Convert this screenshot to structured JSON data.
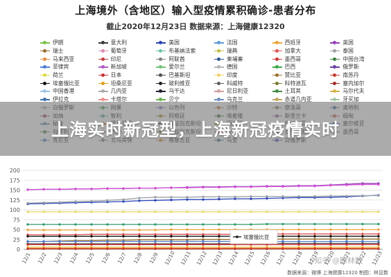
{
  "header": {
    "title": "上海境外（含地区）输入型疫情累积确诊-患者分布",
    "subtitle": "截止2020年12月23日 数据来源：上海健康12320"
  },
  "banner": {
    "text": "上海实时新冠型，上海新冠疫情实时"
  },
  "footer": {
    "source": "数据来源：微博 上海健康12320 制图：林显数",
    "watermark": "i 知乎 @陈林数"
  },
  "legend": [
    {
      "label": "伊朗",
      "color": "#79c142"
    },
    {
      "label": "意大利",
      "color": "#3b3b3b"
    },
    {
      "label": "美国",
      "color": "#2a45b8"
    },
    {
      "label": "法国",
      "color": "#5a9ad6"
    },
    {
      "label": "西班牙",
      "color": "#f0a33b"
    },
    {
      "label": "英国",
      "color": "#8e3fb5"
    },
    {
      "label": "瑞士",
      "color": "#9b6b2a"
    },
    {
      "label": "葡萄牙",
      "color": "#d98cb8"
    },
    {
      "label": "布基纳法索",
      "color": "#6cc0a8"
    },
    {
      "label": "瑞典",
      "color": "#c0c040"
    },
    {
      "label": "加拿大",
      "color": "#e05252"
    },
    {
      "label": "泰国",
      "color": "#9aa0a6"
    },
    {
      "label": "马来西亚",
      "color": "#e58a3c"
    },
    {
      "label": "印尼",
      "color": "#c23b3b"
    },
    {
      "label": "阿联酋",
      "color": "#7f7f7f"
    },
    {
      "label": "柬埔寨",
      "color": "#2f5597"
    },
    {
      "label": "墨西哥",
      "color": "#cc3333"
    },
    {
      "label": "中国台湾",
      "color": "#3a7d3a"
    },
    {
      "label": "菲律宾",
      "color": "#4f7fd1"
    },
    {
      "label": "新加坡",
      "color": "#b05cc0"
    },
    {
      "label": "爱尔兰",
      "color": "#74c476"
    },
    {
      "label": "德国",
      "color": "#b5b5b5"
    },
    {
      "label": "巴西",
      "color": "#3aa84a"
    },
    {
      "label": "俄罗斯",
      "color": "#6b3fa0"
    },
    {
      "label": "荷兰",
      "color": "#dddd44"
    },
    {
      "label": "日本",
      "color": "#c93030"
    },
    {
      "label": "巴基斯坦",
      "color": "#4d4d4d"
    },
    {
      "label": "印度",
      "color": "#f2d36b"
    },
    {
      "label": "赞比亚",
      "color": "#9b6f2f"
    },
    {
      "label": "南苏丹",
      "color": "#c53a2f"
    },
    {
      "label": "埃塞俄比亚",
      "color": "#111111"
    },
    {
      "label": "坦桑尼亚",
      "color": "#e0a020"
    },
    {
      "label": "玻利维亚",
      "color": "#222222"
    },
    {
      "label": "科威特",
      "color": "#5c5c5c"
    },
    {
      "label": "科特迪瓦",
      "color": "#7a7a30"
    },
    {
      "label": "塞内加尔",
      "color": "#a32a2a"
    },
    {
      "label": "中国香港",
      "color": "#9dc3e6"
    },
    {
      "label": "几内亚",
      "color": "#aaaaaa"
    },
    {
      "label": "乌干达",
      "color": "#222233"
    },
    {
      "label": "尼日利亚",
      "color": "#d0a0a0"
    },
    {
      "label": "土耳其",
      "color": "#3d8c3d"
    },
    {
      "label": "马尔代夫",
      "color": "#d4b24a"
    },
    {
      "label": "伊拉克",
      "color": "#3d6fb0"
    },
    {
      "label": "卡塔尔",
      "color": "#f28e8e"
    },
    {
      "label": "贝宁",
      "color": "#6ab04c"
    },
    {
      "label": "乌克兰",
      "color": "#6c8ebf"
    },
    {
      "label": "赤道几内亚",
      "color": "#c4a35a"
    },
    {
      "label": "牙买加",
      "color": "#a0c4a0"
    },
    {
      "label": "白俄罗斯",
      "color": "#b3b3b3"
    },
    {
      "label": "刚果",
      "color": "#55aa55"
    },
    {
      "label": "以色列",
      "color": "#8888cc"
    },
    {
      "label": "沙特",
      "color": "#cc8855"
    },
    {
      "label": "摩洛哥",
      "color": "#998877"
    },
    {
      "label": "奥地利",
      "color": "#5577aa"
    },
    {
      "label": "加纳",
      "color": "#aa5566"
    },
    {
      "label": "智利",
      "color": "#66aaaa"
    },
    {
      "label": "阿根廷",
      "color": "#aa9933"
    },
    {
      "label": "喀麦隆",
      "color": "#557755"
    },
    {
      "label": "斯里兰卡",
      "color": "#996699"
    },
    {
      "label": "缅甸",
      "color": "#cc6666"
    },
    {
      "label": "秘鲁",
      "color": "#7799bb"
    },
    {
      "label": "罗马尼亚",
      "color": "#bb7733"
    },
    {
      "label": "乌兹别克斯坦",
      "color": "#667788"
    },
    {
      "label": "阿根廷",
      "color": "#88aa44"
    },
    {
      "label": "保加利亚",
      "color": "#2c2c5a"
    },
    {
      "label": "塞尔维亚",
      "color": "#4466bb"
    },
    {
      "label": "匈牙利",
      "color": "#5a8f5a"
    },
    {
      "label": "也门",
      "color": "#b06a9a"
    },
    {
      "label": "乌兹别克斯坦",
      "color": "#8a8a5a"
    },
    {
      "label": "安哥拉",
      "color": "#aa4444"
    },
    {
      "label": "瓦努阿图",
      "color": "#3a3a3a"
    },
    {
      "label": "墨西哥",
      "color": "#7a5a3a"
    },
    {
      "label": "肯尼亚",
      "color": "#5b8bd0"
    },
    {
      "label": "北马其顿",
      "color": "#8c8c8c"
    },
    {
      "label": "格鲁吉亚",
      "color": "#d89a3a"
    },
    {
      "label": "马里",
      "color": "#4a7a9a"
    },
    {
      "label": "白俄罗斯",
      "color": "#5a5acc"
    }
  ],
  "chart_data": {
    "type": "line",
    "title": "上海境外（含地区）输入型疫情累积确诊-患者分布",
    "subtitle": "截止2020年12月23日 数据来源：上海健康12320",
    "xlabel": "",
    "ylabel": "",
    "x": [
      "12/1",
      "12/2",
      "12/3",
      "12/4",
      "12/5",
      "12/6",
      "12/7",
      "12/8",
      "12/9",
      "12/10",
      "12/11",
      "12/12",
      "12/13",
      "12/14",
      "12/15",
      "12/16",
      "12/17",
      "12/18",
      "12/19",
      "12/20",
      "12/21",
      "12/22",
      "12/23"
    ],
    "ylim": [
      0,
      200
    ],
    "yticks": [
      0,
      25,
      50,
      75,
      100,
      125,
      150,
      175,
      200
    ],
    "grid": true,
    "series": [
      {
        "name": "英国",
        "color": "#8e3fb5",
        "values": [
          151,
          152,
          152,
          153,
          153,
          154,
          154,
          155,
          155,
          156,
          157,
          158,
          158,
          159,
          159,
          160,
          160,
          161,
          161,
          163,
          165,
          167,
          167
        ]
      },
      {
        "name": "俄罗斯",
        "color": "#d24fd6",
        "values": [
          151,
          152,
          152,
          153,
          153,
          154,
          154,
          155,
          155,
          156,
          156,
          157,
          157,
          158,
          158,
          159,
          159,
          160,
          160,
          162,
          163,
          164,
          164
        ]
      },
      {
        "name": "美国",
        "color": "#2a45b8",
        "values": [
          115,
          116,
          117,
          118,
          119,
          120,
          121,
          123,
          124,
          125,
          126,
          126,
          127,
          128,
          128,
          129,
          130,
          131,
          131,
          132,
          133,
          135,
          137
        ]
      },
      {
        "name": "法国",
        "color": "#9aa0a6",
        "values": [
          117,
          118,
          119,
          121,
          122,
          124,
          126,
          130,
          132,
          132,
          132,
          133,
          133,
          133,
          134,
          134,
          134,
          134,
          134,
          135,
          135,
          136,
          136
        ]
      },
      {
        "name": "伊朗",
        "color": "#e8d96b",
        "values": [
          95,
          95,
          95,
          95,
          95,
          95,
          95,
          95,
          95,
          95,
          95,
          95,
          95,
          95,
          95,
          95,
          95,
          95,
          95,
          95,
          95,
          95,
          95
        ]
      },
      {
        "name": "意大利",
        "color": "#2f9a6c",
        "values": [
          63,
          63,
          63,
          63,
          63,
          63,
          63,
          63,
          63,
          63,
          63,
          63,
          63,
          63,
          63,
          64,
          64,
          64,
          64,
          64,
          64,
          64,
          64
        ]
      },
      {
        "name": "西班牙",
        "color": "#f0a33b",
        "values": [
          49,
          49,
          49,
          49,
          49,
          49,
          49,
          49,
          49,
          50,
          50,
          50,
          50,
          50,
          50,
          50,
          50,
          50,
          50,
          50,
          50,
          50,
          50
        ]
      },
      {
        "name": "加拿大",
        "color": "#e05252",
        "values": [
          37,
          37,
          37,
          37,
          38,
          38,
          38,
          38,
          38,
          38,
          38,
          38,
          38,
          38,
          38,
          38,
          39,
          39,
          39,
          39,
          39,
          39,
          39
        ]
      },
      {
        "name": "埃塞俄比亚",
        "color": "#111111",
        "values": [
          33,
          33,
          33,
          33,
          33,
          33,
          33,
          33,
          33,
          33,
          33,
          33,
          33,
          33,
          33,
          33,
          33,
          33,
          33,
          33,
          33,
          33,
          33
        ]
      },
      {
        "name": "赞比亚",
        "color": "#9b6f2f",
        "values": [
          20,
          20,
          21,
          22,
          22,
          23,
          23,
          24,
          24,
          24,
          24,
          25,
          25,
          25,
          25,
          25,
          26,
          26,
          26,
          26,
          26,
          26,
          26
        ]
      },
      {
        "name": "菲律宾",
        "color": "#4f7fd1",
        "values": [
          20,
          20,
          20,
          20,
          20,
          20,
          20,
          20,
          20,
          20,
          20,
          20,
          20,
          20,
          20,
          20,
          20,
          20,
          20,
          20,
          20,
          20,
          20
        ]
      },
      {
        "name": "巴基斯坦",
        "color": "#4d4d4d",
        "values": [
          14,
          14,
          14,
          14,
          14,
          14,
          14,
          14,
          14,
          14,
          14,
          14,
          14,
          14,
          15,
          15,
          15,
          15,
          15,
          15,
          15,
          15,
          15
        ]
      },
      {
        "name": "日本",
        "color": "#c93030",
        "values": [
          12,
          12,
          12,
          12,
          12,
          12,
          12,
          12,
          12,
          12,
          12,
          12,
          12,
          12,
          12,
          12,
          12,
          12,
          12,
          12,
          12,
          12,
          12
        ]
      },
      {
        "name": "印度",
        "color": "#f2d36b",
        "values": [
          6,
          6,
          6,
          6,
          6,
          6,
          6,
          6,
          6,
          6,
          6,
          6,
          6,
          6,
          6,
          6,
          6,
          6,
          6,
          6,
          6,
          6,
          6
        ]
      },
      {
        "name": "瑞士",
        "color": "#e07b2c",
        "values": [
          3,
          3,
          3,
          3,
          3,
          3,
          3,
          3,
          3,
          3,
          3,
          3,
          3,
          3,
          3,
          3,
          3,
          3,
          3,
          3,
          3,
          3,
          3
        ]
      },
      {
        "name": "南苏丹",
        "color": "#c53a2f",
        "values": [
          1,
          1,
          1,
          1,
          1,
          1,
          1,
          1,
          1,
          1,
          1,
          1,
          1,
          1,
          1,
          1,
          1,
          1,
          1,
          1,
          1,
          1,
          1
        ]
      }
    ]
  }
}
